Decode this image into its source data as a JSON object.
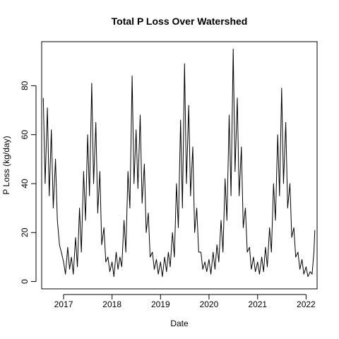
{
  "chart_data": {
    "type": "line",
    "title": "Total P Loss Over Watershed",
    "xlabel": "Date",
    "ylabel": "P Loss (kg/day)",
    "xlim": [
      "2016-07-20",
      "2022-03-25"
    ],
    "ylim": [
      -3,
      98
    ],
    "grid": false,
    "legend": "none",
    "line_color": "#000000",
    "x_ticks": [
      "2017",
      "2018",
      "2019",
      "2020",
      "2021",
      "2022"
    ],
    "y_ticks": [
      0,
      20,
      40,
      60,
      80
    ],
    "series": [
      {
        "x": [
          "2016-08-01",
          "2016-08-15",
          "2016-09-01",
          "2016-09-15",
          "2016-10-01",
          "2016-10-15",
          "2016-11-01",
          "2016-11-15",
          "2016-12-01",
          "2016-12-15",
          "2017-01-01",
          "2017-01-15",
          "2017-02-01",
          "2017-02-15",
          "2017-03-01",
          "2017-03-15",
          "2017-04-01",
          "2017-04-15",
          "2017-05-01",
          "2017-05-15",
          "2017-06-01",
          "2017-06-15",
          "2017-07-01",
          "2017-07-15",
          "2017-08-01",
          "2017-08-15",
          "2017-09-01",
          "2017-09-15",
          "2017-10-01",
          "2017-10-15",
          "2017-11-01",
          "2017-11-15",
          "2017-12-01",
          "2017-12-15",
          "2018-01-01",
          "2018-01-15",
          "2018-02-01",
          "2018-02-15",
          "2018-03-01",
          "2018-03-15",
          "2018-04-01",
          "2018-04-15",
          "2018-05-01",
          "2018-05-15",
          "2018-06-01",
          "2018-06-15",
          "2018-07-01",
          "2018-07-15",
          "2018-08-01",
          "2018-08-15",
          "2018-09-01",
          "2018-09-15",
          "2018-10-01",
          "2018-10-15",
          "2018-11-01",
          "2018-11-15",
          "2018-12-01",
          "2018-12-15",
          "2019-01-01",
          "2019-01-15",
          "2019-02-01",
          "2019-02-15",
          "2019-03-01",
          "2019-03-15",
          "2019-04-01",
          "2019-04-15",
          "2019-05-01",
          "2019-05-15",
          "2019-06-01",
          "2019-06-15",
          "2019-07-01",
          "2019-07-15",
          "2019-08-01",
          "2019-08-15",
          "2019-09-01",
          "2019-09-15",
          "2019-10-01",
          "2019-10-15",
          "2019-11-01",
          "2019-11-15",
          "2019-12-01",
          "2019-12-15",
          "2020-01-01",
          "2020-01-15",
          "2020-02-01",
          "2020-02-15",
          "2020-03-01",
          "2020-03-15",
          "2020-04-01",
          "2020-04-15",
          "2020-05-01",
          "2020-05-15",
          "2020-06-01",
          "2020-06-15",
          "2020-07-01",
          "2020-07-15",
          "2020-08-01",
          "2020-08-15",
          "2020-09-01",
          "2020-09-15",
          "2020-10-01",
          "2020-10-15",
          "2020-11-01",
          "2020-11-15",
          "2020-12-01",
          "2020-12-15",
          "2021-01-01",
          "2021-01-15",
          "2021-02-01",
          "2021-02-15",
          "2021-03-01",
          "2021-03-15",
          "2021-04-01",
          "2021-04-15",
          "2021-05-01",
          "2021-05-15",
          "2021-06-01",
          "2021-06-15",
          "2021-07-01",
          "2021-07-15",
          "2021-08-01",
          "2021-08-15",
          "2021-09-01",
          "2021-09-15",
          "2021-10-01",
          "2021-10-15",
          "2021-11-01",
          "2021-11-15",
          "2021-12-01",
          "2021-12-15",
          "2022-01-01",
          "2022-01-15",
          "2022-02-01",
          "2022-02-15",
          "2022-03-01",
          "2022-03-08"
        ],
        "y": [
          75,
          40,
          71,
          35,
          62,
          30,
          50,
          25,
          15,
          12,
          8,
          3,
          14,
          5,
          10,
          3,
          18,
          6,
          30,
          12,
          45,
          25,
          60,
          35,
          81,
          40,
          65,
          28,
          45,
          15,
          22,
          8,
          10,
          4,
          8,
          2,
          12,
          5,
          10,
          6,
          25,
          12,
          45,
          30,
          84,
          40,
          62,
          38,
          68,
          32,
          48,
          20,
          28,
          10,
          12,
          5,
          9,
          3,
          8,
          2,
          10,
          4,
          12,
          6,
          20,
          10,
          40,
          22,
          66,
          30,
          89,
          40,
          72,
          35,
          55,
          20,
          30,
          12,
          12,
          5,
          8,
          4,
          9,
          3,
          12,
          5,
          15,
          8,
          25,
          12,
          42,
          25,
          68,
          35,
          95,
          45,
          75,
          35,
          55,
          22,
          30,
          12,
          14,
          5,
          10,
          4,
          8,
          3,
          10,
          4,
          14,
          6,
          22,
          12,
          40,
          25,
          60,
          35,
          79,
          40,
          65,
          30,
          40,
          18,
          22,
          10,
          12,
          5,
          9,
          3,
          6,
          2,
          4,
          3,
          12,
          21
        ]
      }
    ]
  }
}
